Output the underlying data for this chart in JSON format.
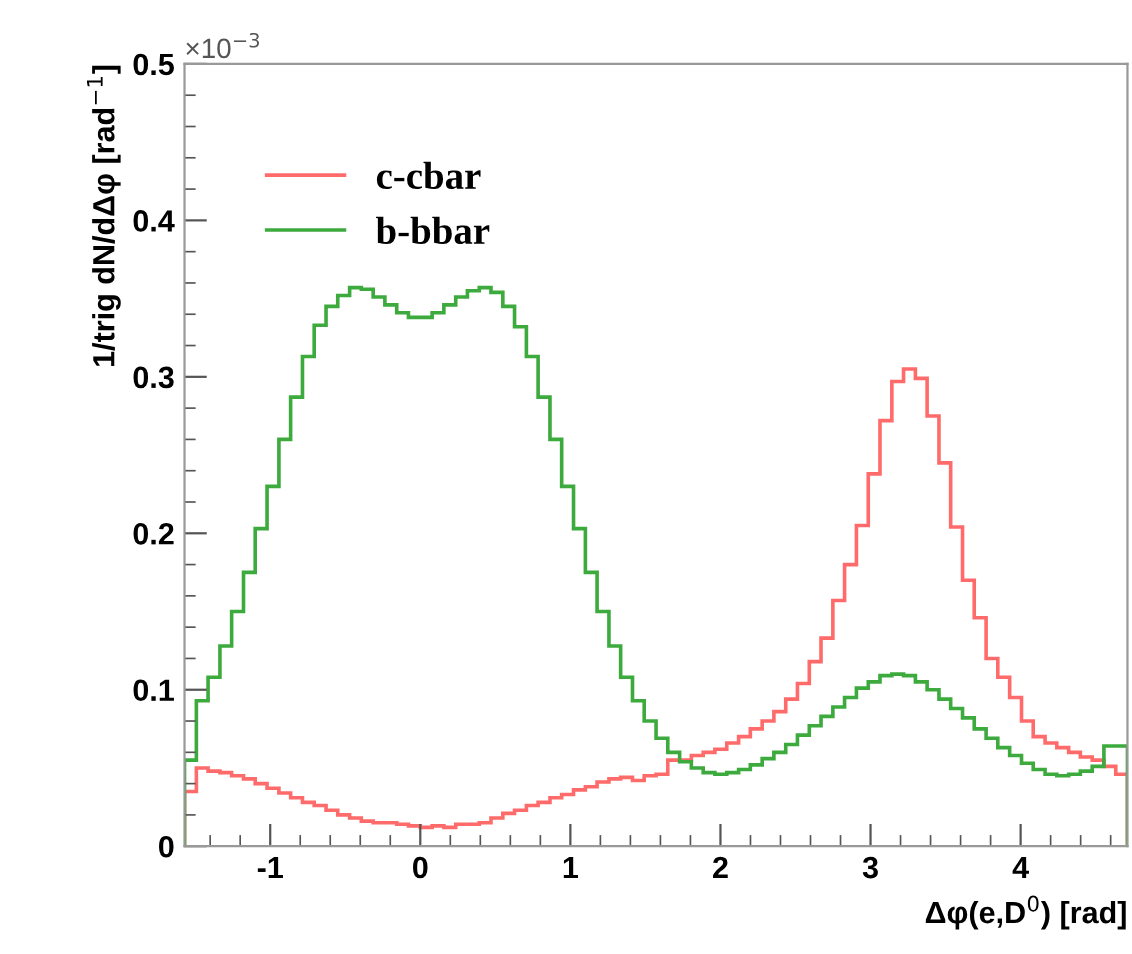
{
  "chart_data": {
    "type": "histogram",
    "xlabel": "Δφ(e,D$^{0}$) [rad]",
    "ylabel": "1/trig dN/dΔφ [rad$^{−1}$]",
    "annotations": [
      "×10$^{−3}$"
    ],
    "bins": [
      -1.571,
      -1.492,
      -1.414,
      -1.335,
      -1.257,
      -1.178,
      -1.1,
      -1.021,
      -0.942,
      -0.864,
      -0.785,
      -0.707,
      -0.628,
      -0.55,
      -0.471,
      -0.393,
      -0.314,
      -0.236,
      -0.157,
      -0.079,
      0,
      0.079,
      0.157,
      0.236,
      0.314,
      0.393,
      0.471,
      0.55,
      0.628,
      0.707,
      0.785,
      0.864,
      0.942,
      1.021,
      1.1,
      1.178,
      1.257,
      1.335,
      1.414,
      1.492,
      1.571,
      1.649,
      1.728,
      1.806,
      1.885,
      1.963,
      2.042,
      2.121,
      2.199,
      2.278,
      2.356,
      2.435,
      2.513,
      2.592,
      2.67,
      2.749,
      2.827,
      2.906,
      2.985,
      3.063,
      3.142,
      3.22,
      3.299,
      3.377,
      3.456,
      3.534,
      3.613,
      3.691,
      3.77,
      3.848,
      3.927,
      4.006,
      4.084,
      4.163,
      4.241,
      4.32,
      4.398,
      4.477,
      4.555,
      4.634,
      4.712
    ],
    "series": [
      {
        "name": "c-cbar",
        "color": "#ff6b6b",
        "values": [
          0.035,
          0.05,
          0.048,
          0.047,
          0.045,
          0.043,
          0.04,
          0.037,
          0.034,
          0.031,
          0.028,
          0.026,
          0.023,
          0.02,
          0.018,
          0.016,
          0.015,
          0.015,
          0.014,
          0.013,
          0.012,
          0.013,
          0.012,
          0.014,
          0.014,
          0.015,
          0.018,
          0.021,
          0.023,
          0.026,
          0.028,
          0.031,
          0.033,
          0.036,
          0.038,
          0.041,
          0.043,
          0.044,
          0.042,
          0.045,
          0.046,
          0.055,
          0.055,
          0.058,
          0.06,
          0.062,
          0.066,
          0.07,
          0.075,
          0.08,
          0.086,
          0.094,
          0.104,
          0.118,
          0.133,
          0.157,
          0.18,
          0.205,
          0.238,
          0.272,
          0.297,
          0.305,
          0.299,
          0.275,
          0.245,
          0.204,
          0.17,
          0.146,
          0.12,
          0.108,
          0.095,
          0.08,
          0.07,
          0.066,
          0.063,
          0.06,
          0.057,
          0.055,
          0.051,
          0.046
        ]
      },
      {
        "name": "b-bbar",
        "color": "#3caa3c",
        "values": [
          0.055,
          0.093,
          0.108,
          0.128,
          0.15,
          0.175,
          0.203,
          0.23,
          0.26,
          0.287,
          0.313,
          0.333,
          0.345,
          0.352,
          0.357,
          0.356,
          0.351,
          0.346,
          0.341,
          0.338,
          0.338,
          0.341,
          0.346,
          0.351,
          0.355,
          0.357,
          0.354,
          0.345,
          0.332,
          0.313,
          0.287,
          0.26,
          0.23,
          0.203,
          0.175,
          0.15,
          0.128,
          0.108,
          0.093,
          0.08,
          0.069,
          0.06,
          0.054,
          0.05,
          0.047,
          0.046,
          0.047,
          0.049,
          0.052,
          0.056,
          0.06,
          0.065,
          0.071,
          0.077,
          0.083,
          0.089,
          0.095,
          0.101,
          0.105,
          0.109,
          0.11,
          0.109,
          0.105,
          0.1,
          0.094,
          0.088,
          0.082,
          0.075,
          0.069,
          0.063,
          0.058,
          0.053,
          0.049,
          0.046,
          0.045,
          0.046,
          0.048,
          0.051,
          0.064,
          0.064
        ]
      }
    ],
    "xlim": [
      -1.571,
      4.712
    ],
    "ylim": [
      0,
      0.5
    ],
    "xticks": [
      -1,
      0,
      1,
      2,
      3,
      4
    ],
    "yticks": [
      0,
      0.1,
      0.2,
      0.3,
      0.4,
      0.5
    ],
    "legend": "top left",
    "grid": false
  }
}
